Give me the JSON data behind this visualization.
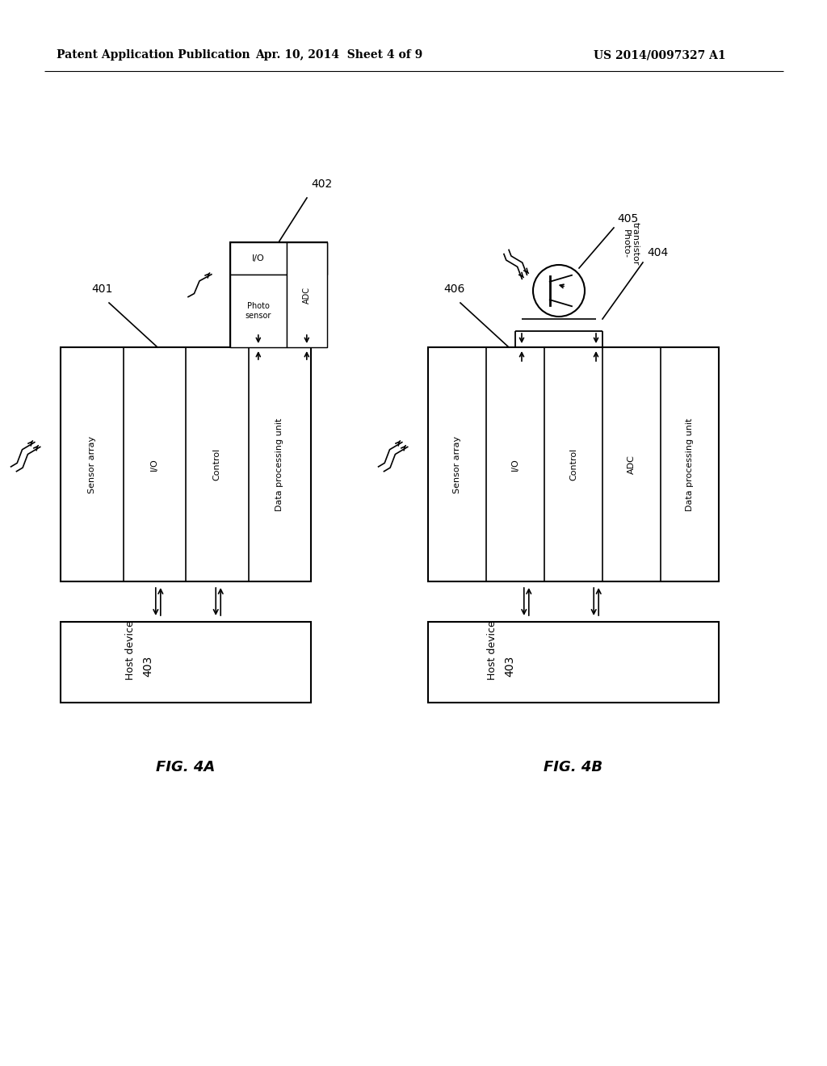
{
  "header_left": "Patent Application Publication",
  "header_mid": "Apr. 10, 2014  Sheet 4 of 9",
  "header_right": "US 2014/0097327 A1",
  "fig4a_label": "FIG. 4A",
  "fig4b_label": "FIG. 4B",
  "ref_401": "401",
  "ref_402": "402",
  "ref_403": "403",
  "ref_404": "404",
  "ref_405": "405",
  "ref_406": "406",
  "host_device": "Host device",
  "photo_transistor_line1": "Photo-",
  "photo_transistor_line2": "transistor",
  "bg_color": "#ffffff",
  "line_color": "#000000",
  "col_labels_4a": [
    "Sensor array",
    "I/O",
    "Control",
    "Data processing unit"
  ],
  "col_labels_4b": [
    "Sensor array",
    "I/O",
    "Control",
    "ADC",
    "Data processing unit"
  ],
  "sens_labels_top": "I/O",
  "sens_labels_botleft": "Photo\nsensor",
  "sens_labels_botright": "ADC"
}
